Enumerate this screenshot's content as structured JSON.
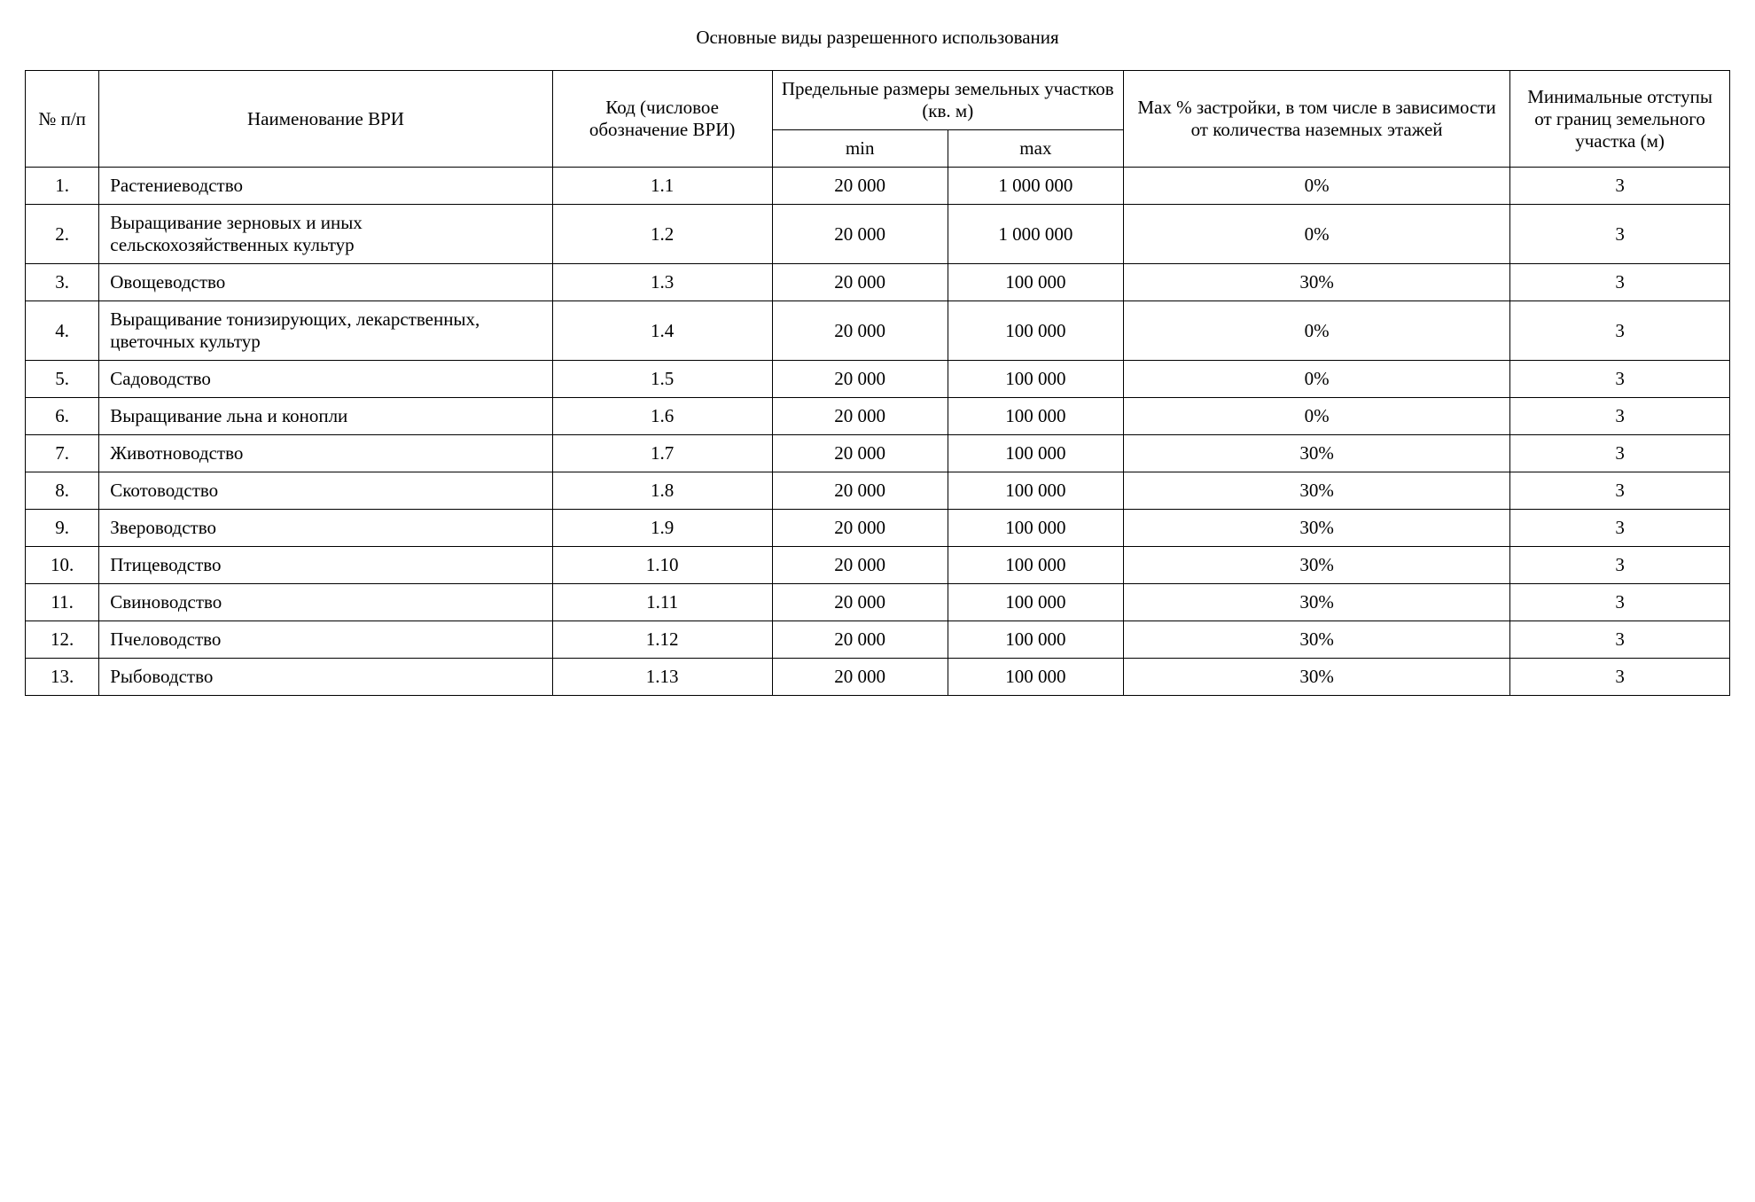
{
  "title": "Основные виды разрешенного использования",
  "table": {
    "type": "table",
    "background_color": "#ffffff",
    "border_color": "#000000",
    "text_color": "#000000",
    "font_family": "Times New Roman",
    "font_size_pt": 16,
    "header": {
      "num": "№ п/п",
      "name": "Наименование ВРИ",
      "code": "Код (числовое обозначение ВРИ)",
      "size_group": "Предельные размеры земельных участков (кв. м)",
      "min": "min",
      "max": "max",
      "pct": "Max % застройки,\nв том числе в зависимости от количества наземных этажей",
      "setback": "Минимальные отступы от границ земельного участка (м)"
    },
    "col_widths_pct": [
      4.2,
      25.8,
      12.5,
      10,
      10,
      22,
      12.5
    ],
    "rows": [
      {
        "num": "1.",
        "name": "Растениеводство",
        "code": "1.1",
        "min": "20 000",
        "max": "1 000 000",
        "pct": "0%",
        "setback": "3"
      },
      {
        "num": "2.",
        "name": "Выращивание зерновых и иных сельскохозяйственных культур",
        "code": "1.2",
        "min": "20 000",
        "max": "1 000 000",
        "pct": "0%",
        "setback": "3"
      },
      {
        "num": "3.",
        "name": "Овощеводство",
        "code": "1.3",
        "min": "20 000",
        "max": "100 000",
        "pct": "30%",
        "setback": "3"
      },
      {
        "num": "4.",
        "name": "Выращивание тонизирующих, лекарственных, цветочных культур",
        "code": "1.4",
        "min": "20 000",
        "max": "100 000",
        "pct": "0%",
        "setback": "3"
      },
      {
        "num": "5.",
        "name": "Садоводство",
        "code": "1.5",
        "min": "20 000",
        "max": "100 000",
        "pct": "0%",
        "setback": "3"
      },
      {
        "num": "6.",
        "name": "Выращивание льна и конопли",
        "code": "1.6",
        "min": "20 000",
        "max": "100 000",
        "pct": "0%",
        "setback": "3"
      },
      {
        "num": "7.",
        "name": "Животноводство",
        "code": "1.7",
        "min": "20 000",
        "max": "100 000",
        "pct": "30%",
        "setback": "3"
      },
      {
        "num": "8.",
        "name": "Скотоводство",
        "code": "1.8",
        "min": "20 000",
        "max": "100 000",
        "pct": "30%",
        "setback": "3"
      },
      {
        "num": "9.",
        "name": "Звероводство",
        "code": "1.9",
        "min": "20 000",
        "max": "100 000",
        "pct": "30%",
        "setback": "3"
      },
      {
        "num": "10.",
        "name": "Птицеводство",
        "code": "1.10",
        "min": "20 000",
        "max": "100 000",
        "pct": "30%",
        "setback": "3"
      },
      {
        "num": "11.",
        "name": "Свиноводство",
        "code": "1.11",
        "min": "20 000",
        "max": "100 000",
        "pct": "30%",
        "setback": "3"
      },
      {
        "num": "12.",
        "name": "Пчеловодство",
        "code": "1.12",
        "min": "20 000",
        "max": "100 000",
        "pct": "30%",
        "setback": "3"
      },
      {
        "num": "13.",
        "name": "Рыбоводство",
        "code": "1.13",
        "min": "20 000",
        "max": "100 000",
        "pct": "30%",
        "setback": "3"
      }
    ]
  }
}
